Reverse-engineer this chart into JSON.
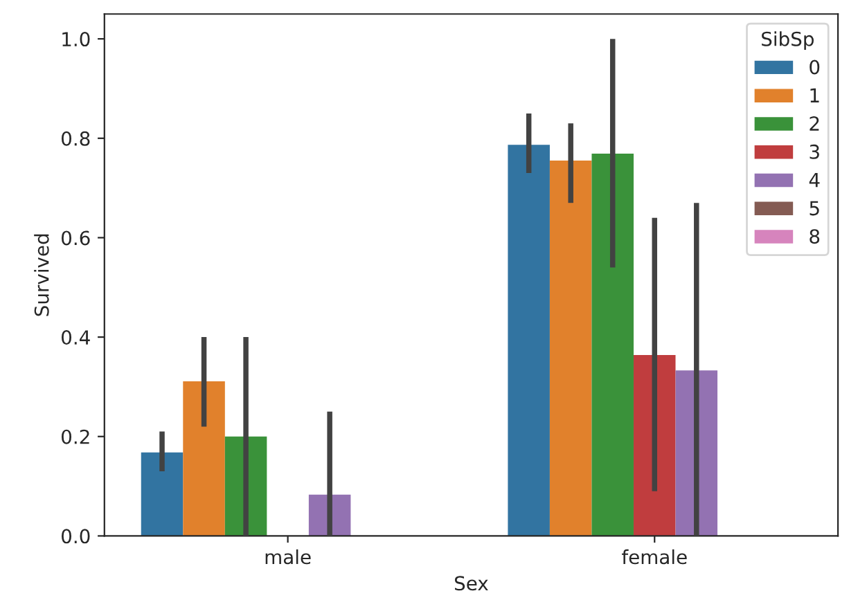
{
  "chart_data": {
    "type": "bar",
    "xlabel": "Sex",
    "ylabel": "Survived",
    "legend_title": "SibSp",
    "categories": [
      "male",
      "female"
    ],
    "series": [
      {
        "name": "0",
        "color": "#3274a1",
        "values": [
          0.168,
          0.787
        ],
        "errors": [
          [
            0.13,
            0.21
          ],
          [
            0.73,
            0.85
          ]
        ]
      },
      {
        "name": "1",
        "color": "#e1812c",
        "values": [
          0.311,
          0.755
        ],
        "errors": [
          [
            0.22,
            0.4
          ],
          [
            0.67,
            0.83
          ]
        ]
      },
      {
        "name": "2",
        "color": "#3a923a",
        "values": [
          0.2,
          0.769
        ],
        "errors": [
          [
            0.0,
            0.4
          ],
          [
            0.54,
            1.0
          ]
        ]
      },
      {
        "name": "3",
        "color": "#c03d3e",
        "values": [
          null,
          0.364
        ],
        "errors": [
          null,
          [
            0.09,
            0.64
          ]
        ]
      },
      {
        "name": "4",
        "color": "#9372b2",
        "values": [
          0.083,
          0.333
        ],
        "errors": [
          [
            0.0,
            0.25
          ],
          [
            0.0,
            0.67
          ]
        ]
      },
      {
        "name": "5",
        "color": "#845b53",
        "values": [
          null,
          null
        ],
        "errors": [
          null,
          null
        ]
      },
      {
        "name": "8",
        "color": "#d684bd",
        "values": [
          null,
          null
        ],
        "errors": [
          null,
          null
        ]
      }
    ],
    "ylim": [
      0,
      1.05
    ],
    "yticks": [
      {
        "value": 0,
        "label": "0.0"
      },
      {
        "value": 0.2,
        "label": "0.2"
      },
      {
        "value": 0.4,
        "label": "0.4"
      },
      {
        "value": 0.6,
        "label": "0.6"
      },
      {
        "value": 0.8,
        "label": "0.8"
      },
      {
        "value": 1.0,
        "label": "1.0"
      }
    ],
    "legend": "top right",
    "grid": false
  }
}
